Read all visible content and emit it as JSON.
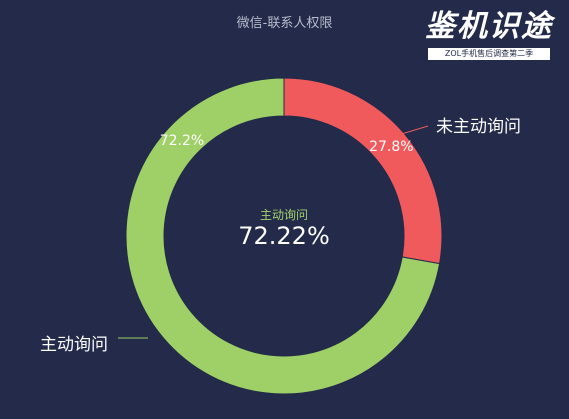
{
  "header": {
    "title": "微信-联系人权限"
  },
  "brand": {
    "logo_text": "鉴机识途",
    "subtitle": "ZOL手机售后调查第二季"
  },
  "center": {
    "label": "主动询问",
    "value": "72.22%"
  },
  "colors": {
    "background": "#232a4a",
    "green": "#9fd067",
    "red": "#f05a5c"
  },
  "chart_data": {
    "type": "pie",
    "title": "微信-联系人权限",
    "slices": [
      {
        "name": "未主动询问",
        "value": 27.8,
        "label": "27.8%",
        "color": "#f05a5c"
      },
      {
        "name": "主动询问",
        "value": 72.2,
        "label": "72.2%",
        "color": "#9fd067"
      }
    ],
    "legend": "none"
  }
}
